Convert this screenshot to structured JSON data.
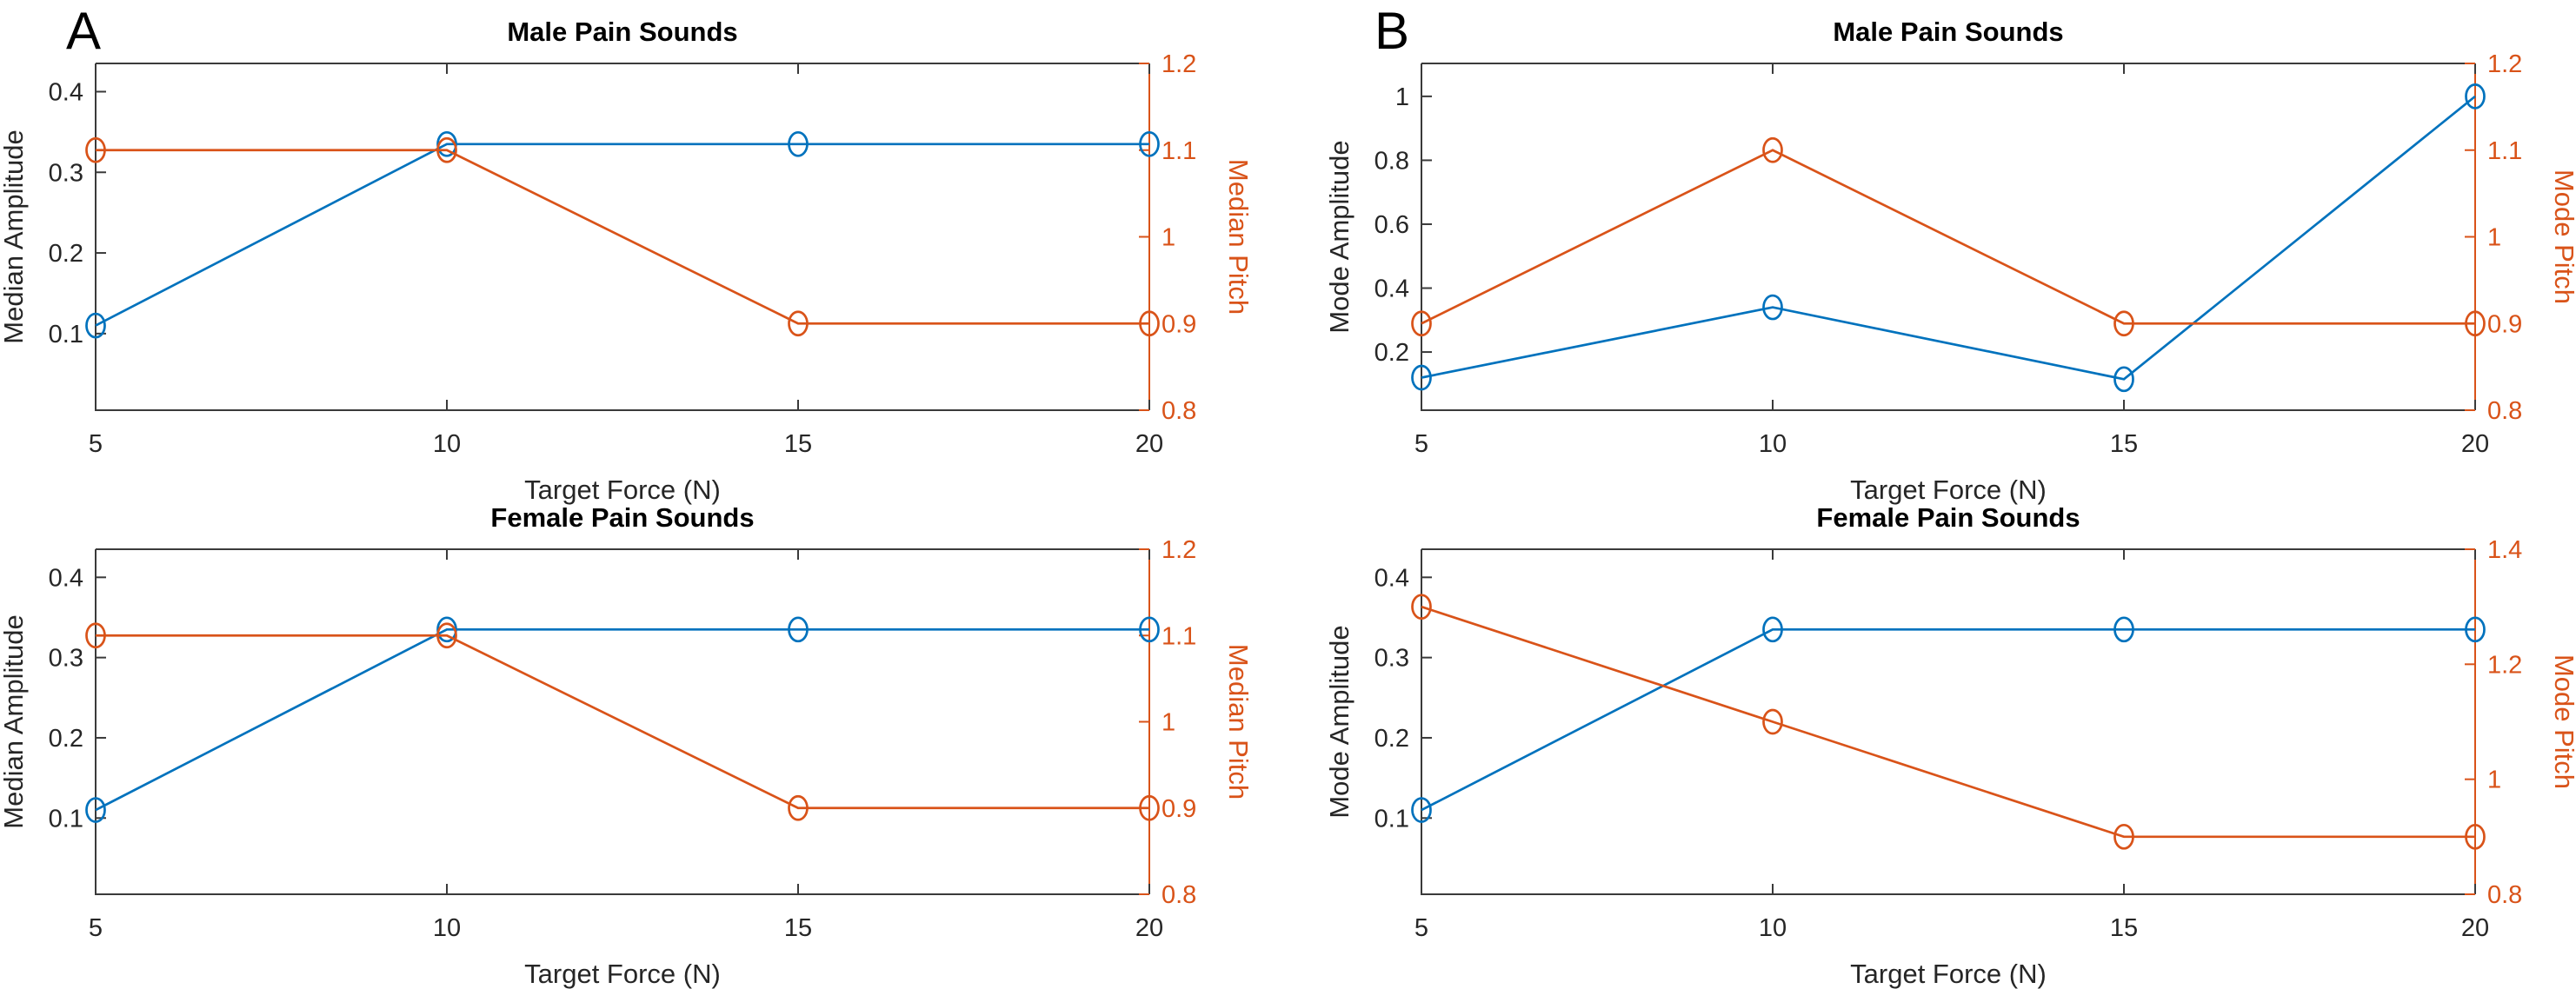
{
  "figure_background": "#ffffff",
  "colors": {
    "amplitude_series": "#0072BD",
    "pitch_series": "#D95319",
    "axis_line": "#3a3a3a",
    "tick_text": "#262626",
    "title_text": "#000000"
  },
  "panel_letters": [
    {
      "label": "A"
    },
    {
      "label": "B"
    }
  ],
  "chart_data": [
    {
      "id": "panel-A-male",
      "panel": "A",
      "type": "line",
      "title": "Male Pain Sounds",
      "xlabel": "Target Force (N)",
      "x": [
        5,
        10,
        15,
        20
      ],
      "xlim": [
        5,
        20
      ],
      "xtick_labels": [
        "5",
        "10",
        "15",
        "20"
      ],
      "grid": false,
      "legend": "none",
      "left_axis": {
        "label": "Median Amplitude",
        "lim": [
          0.005,
          0.435
        ],
        "tick_values": [
          0.1,
          0.2,
          0.3,
          0.4
        ],
        "tick_labels": [
          "0.1",
          "0.2",
          "0.3",
          "0.4"
        ]
      },
      "right_axis": {
        "label": "Median Pitch",
        "lim": [
          0.8,
          1.2
        ],
        "tick_values": [
          0.8,
          0.9,
          1.0,
          1.1,
          1.2
        ],
        "tick_labels": [
          "0.8",
          "0.9",
          "1",
          "1.1",
          "1.2"
        ]
      },
      "series": [
        {
          "name": "Median Amplitude",
          "axis": "left",
          "marker": "circle",
          "values": [
            0.11,
            0.335,
            0.335,
            0.335
          ]
        },
        {
          "name": "Median Pitch",
          "axis": "right",
          "marker": "circle",
          "values": [
            1.1,
            1.1,
            0.9,
            0.9
          ]
        }
      ]
    },
    {
      "id": "panel-B-male",
      "panel": "B",
      "type": "line",
      "title": "Male Pain Sounds",
      "xlabel": "Target Force (N)",
      "x": [
        5,
        10,
        15,
        20
      ],
      "xlim": [
        5,
        20
      ],
      "xtick_labels": [
        "5",
        "10",
        "15",
        "20"
      ],
      "grid": false,
      "legend": "none",
      "left_axis": {
        "label": "Mode Amplitude",
        "lim": [
          0.018,
          1.103
        ],
        "tick_values": [
          0.2,
          0.4,
          0.6,
          0.8,
          1.0
        ],
        "tick_labels": [
          "0.2",
          "0.4",
          "0.6",
          "0.8",
          "1"
        ]
      },
      "right_axis": {
        "label": "Mode Pitch",
        "lim": [
          0.8,
          1.2
        ],
        "tick_values": [
          0.8,
          0.9,
          1.0,
          1.1,
          1.2
        ],
        "tick_labels": [
          "0.8",
          "0.9",
          "1",
          "1.1",
          "1.2"
        ]
      },
      "series": [
        {
          "name": "Mode Amplitude",
          "axis": "left",
          "marker": "circle",
          "values": [
            0.12,
            0.34,
            0.115,
            1.0
          ]
        },
        {
          "name": "Mode Pitch",
          "axis": "right",
          "marker": "circle",
          "values": [
            0.9,
            1.1,
            0.9,
            0.9
          ]
        }
      ]
    },
    {
      "id": "panel-A-female",
      "panel": "A",
      "type": "line",
      "title": "Female Pain Sounds",
      "xlabel": "Target Force (N)",
      "x": [
        5,
        10,
        15,
        20
      ],
      "xlim": [
        5,
        20
      ],
      "xtick_labels": [
        "5",
        "10",
        "15",
        "20"
      ],
      "grid": false,
      "legend": "none",
      "left_axis": {
        "label": "Median Amplitude",
        "lim": [
          0.005,
          0.435
        ],
        "tick_values": [
          0.1,
          0.2,
          0.3,
          0.4
        ],
        "tick_labels": [
          "0.1",
          "0.2",
          "0.3",
          "0.4"
        ]
      },
      "right_axis": {
        "label": "Median Pitch",
        "lim": [
          0.8,
          1.2
        ],
        "tick_values": [
          0.8,
          0.9,
          1.0,
          1.1,
          1.2
        ],
        "tick_labels": [
          "0.8",
          "0.9",
          "1",
          "1.1",
          "1.2"
        ]
      },
      "series": [
        {
          "name": "Median Amplitude",
          "axis": "left",
          "marker": "circle",
          "values": [
            0.11,
            0.335,
            0.335,
            0.335
          ]
        },
        {
          "name": "Median Pitch",
          "axis": "right",
          "marker": "circle",
          "values": [
            1.1,
            1.1,
            0.9,
            0.9
          ]
        }
      ]
    },
    {
      "id": "panel-B-female",
      "panel": "B",
      "type": "line",
      "title": "Female Pain Sounds",
      "xlabel": "Target Force (N)",
      "x": [
        5,
        10,
        15,
        20
      ],
      "xlim": [
        5,
        20
      ],
      "xtick_labels": [
        "5",
        "10",
        "15",
        "20"
      ],
      "grid": false,
      "legend": "none",
      "left_axis": {
        "label": "Mode Amplitude",
        "lim": [
          0.005,
          0.435
        ],
        "tick_values": [
          0.1,
          0.2,
          0.3,
          0.4
        ],
        "tick_labels": [
          "0.1",
          "0.2",
          "0.3",
          "0.4"
        ]
      },
      "right_axis": {
        "label": "Mode Pitch",
        "lim": [
          0.8,
          1.4
        ],
        "tick_values": [
          0.8,
          1.0,
          1.2,
          1.4
        ],
        "tick_labels": [
          "0.8",
          "1",
          "1.2",
          "1.4"
        ]
      },
      "series": [
        {
          "name": "Mode Amplitude",
          "axis": "left",
          "marker": "circle",
          "values": [
            0.11,
            0.335,
            0.335,
            0.335
          ]
        },
        {
          "name": "Mode Pitch",
          "axis": "right",
          "marker": "circle",
          "values": [
            1.3,
            1.1,
            0.9,
            0.9
          ]
        }
      ]
    }
  ]
}
